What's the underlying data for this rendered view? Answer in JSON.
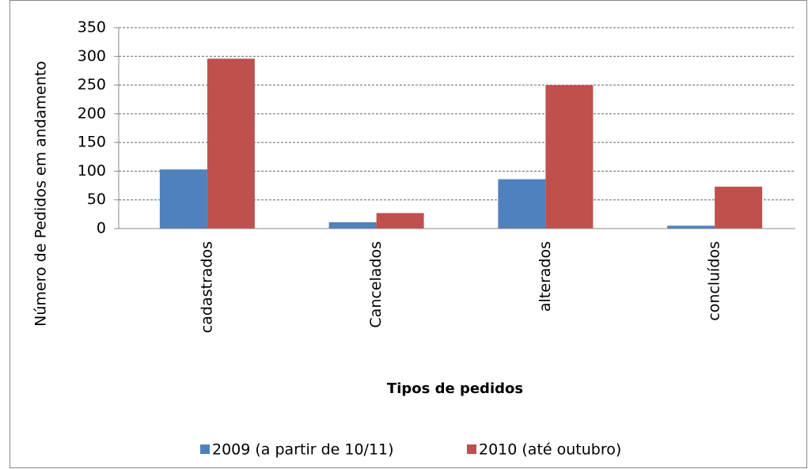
{
  "chart_data": {
    "type": "bar",
    "y_label": "Número de Pedidos em andamento",
    "x_label": "Tipos de pedidos",
    "categories": [
      "cadastrados",
      "Cancelados",
      "alterados",
      "concluídos"
    ],
    "series": [
      {
        "name": "2009 (a partir de 10/11)",
        "color": "#4f81bd",
        "values": [
          103,
          11,
          86,
          5
        ]
      },
      {
        "name": "2010 (até outubro)",
        "color": "#c0504d",
        "values": [
          296,
          27,
          250,
          73
        ]
      }
    ],
    "ylim": [
      0,
      350
    ],
    "yticks": [
      0,
      50,
      100,
      150,
      200,
      250,
      300,
      350
    ],
    "grid": true,
    "legend": "bottom"
  }
}
